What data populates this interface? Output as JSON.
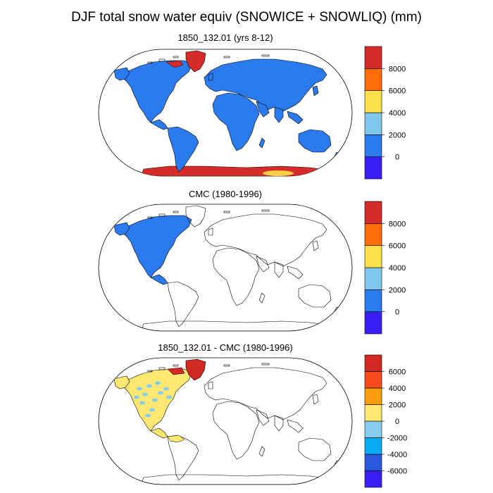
{
  "title": "DJF total snow water equiv (SNOWICE + SNOWLIQ) (mm)",
  "panels": [
    {
      "id": "model",
      "title": "1850_132.01 (yrs 8-12)",
      "colorbar": {
        "colors": [
          "#3a1ff5",
          "#2b7bef",
          "#7ec8ee",
          "#fee04a",
          "#fc6d0a",
          "#d62c29"
        ],
        "labels": [
          "0",
          "2000",
          "4000",
          "6000",
          "8000"
        ]
      }
    },
    {
      "id": "obs",
      "title": "CMC (1980-1996)",
      "colorbar": {
        "colors": [
          "#3a1ff5",
          "#2b7bef",
          "#7ec8ee",
          "#fee04a",
          "#fc6d0a",
          "#d62c29"
        ],
        "labels": [
          "0",
          "2000",
          "4000",
          "6000",
          "8000"
        ]
      }
    },
    {
      "id": "diff",
      "title": "1850_132.01 - CMC (1980-1996)",
      "colorbar": {
        "colors": [
          "#3a1ff5",
          "#2c58dc",
          "#0aaaf5",
          "#86cdee",
          "#fee872",
          "#fc9d10",
          "#f54a1c",
          "#d22a22"
        ],
        "labels": [
          "-6000",
          "-4000",
          "-2000",
          "0",
          "2000",
          "4000",
          "6000"
        ]
      }
    }
  ],
  "colors": {
    "land_fill_model": "#2b7bef",
    "greenland_model": "#d62c29",
    "antarctica_model": "#d62c29",
    "antarctica_peak": "#fee04a",
    "obs_fill": "#2b7bef",
    "diff_fill": "#fee872",
    "diff_spots": "#86cdee",
    "diff_greenland": "#d22a22"
  }
}
